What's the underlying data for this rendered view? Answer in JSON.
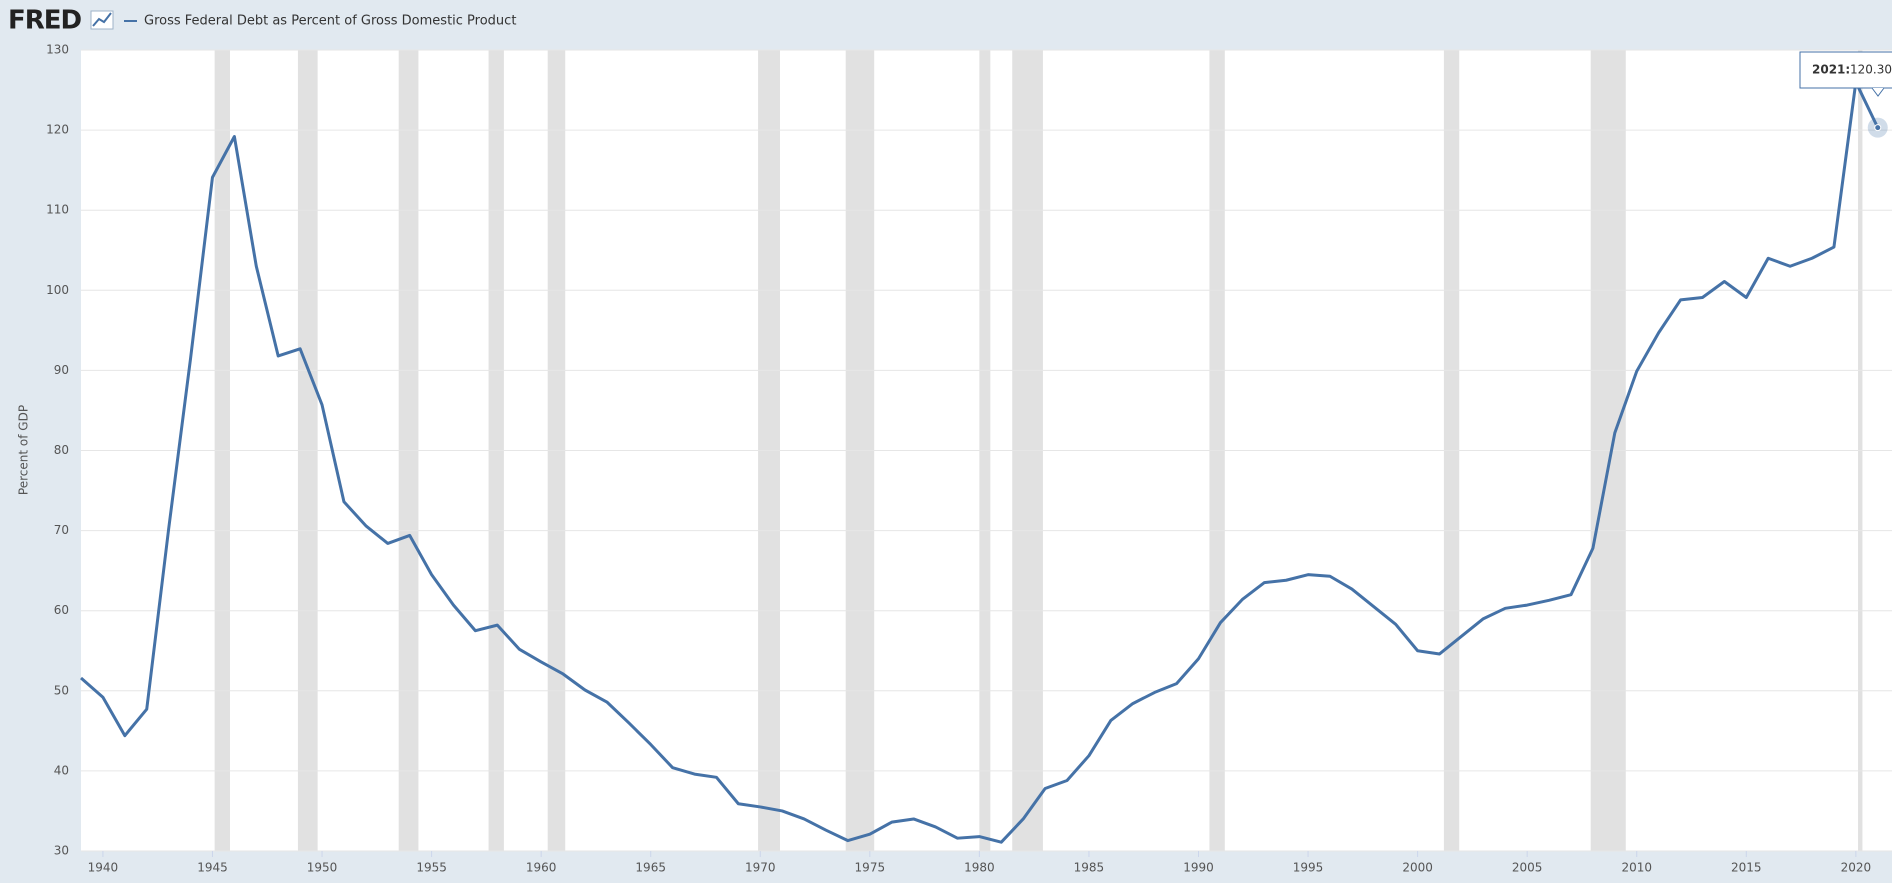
{
  "logo": "FRED",
  "chart_data": {
    "type": "line",
    "y_label": "Percent of GDP",
    "x": [
      1939,
      1940,
      1941,
      1942,
      1943,
      1944,
      1945,
      1946,
      1947,
      1948,
      1949,
      1950,
      1951,
      1952,
      1953,
      1954,
      1955,
      1956,
      1957,
      1958,
      1959,
      1960,
      1961,
      1962,
      1963,
      1964,
      1965,
      1966,
      1967,
      1968,
      1969,
      1970,
      1971,
      1972,
      1973,
      1974,
      1975,
      1976,
      1977,
      1978,
      1979,
      1980,
      1981,
      1982,
      1983,
      1984,
      1985,
      1986,
      1987,
      1988,
      1989,
      1990,
      1991,
      1992,
      1993,
      1994,
      1995,
      1996,
      1997,
      1998,
      1999,
      2000,
      2001,
      2002,
      2003,
      2004,
      2005,
      2006,
      2007,
      2008,
      2009,
      2010,
      2011,
      2012,
      2013,
      2014,
      2015,
      2016,
      2017,
      2018,
      2019,
      2020,
      2021
    ],
    "series": [
      {
        "name": "Gross Federal Debt as Percent of Gross Domestic Product",
        "color": "#4572a7",
        "values": [
          51.6,
          49.2,
          44.4,
          47.7,
          70.2,
          91.5,
          114.1,
          119.2,
          103.0,
          91.8,
          92.7,
          85.7,
          73.6,
          70.6,
          68.4,
          69.4,
          64.5,
          60.7,
          57.5,
          58.2,
          55.2,
          53.6,
          52.1,
          50.1,
          48.6,
          46.0,
          43.3,
          40.4,
          39.6,
          39.2,
          35.9,
          35.5,
          35.0,
          34.0,
          32.6,
          31.3,
          32.1,
          33.6,
          34.0,
          33.0,
          31.6,
          31.8,
          31.1,
          34.0,
          37.8,
          38.8,
          41.9,
          46.3,
          48.4,
          49.8,
          50.9,
          54.0,
          58.5,
          61.4,
          63.5,
          63.8,
          64.5,
          64.3,
          62.7,
          60.5,
          58.3,
          55.0,
          54.6,
          56.8,
          59.0,
          60.3,
          60.7,
          61.3,
          62.0,
          67.8,
          82.2,
          89.9,
          94.7,
          98.8,
          99.1,
          101.1,
          99.1,
          104.0,
          103.0,
          104.0,
          105.4,
          126.0,
          120.308
        ]
      }
    ],
    "recessions": [
      [
        1945.1,
        1945.8
      ],
      [
        1948.9,
        1949.8
      ],
      [
        1953.5,
        1954.4
      ],
      [
        1957.6,
        1958.3
      ],
      [
        1960.3,
        1961.1
      ],
      [
        1969.9,
        1970.9
      ],
      [
        1973.9,
        1975.2
      ],
      [
        1980.0,
        1980.5
      ],
      [
        1981.5,
        1982.9
      ],
      [
        1990.5,
        1991.2
      ],
      [
        2001.2,
        2001.9
      ],
      [
        2007.9,
        2009.5
      ],
      [
        2020.1,
        2020.3
      ]
    ],
    "recession_color": "#e1e1e1",
    "tooltip": {
      "title": "2021:",
      "index": 82
    },
    "xlim": [
      1939,
      2021.65
    ],
    "xticks": [
      1940,
      1945,
      1950,
      1955,
      1960,
      1965,
      1970,
      1975,
      1980,
      1985,
      1990,
      1995,
      2000,
      2005,
      2010,
      2015,
      2020
    ],
    "ylim": [
      30,
      130
    ],
    "yticks": [
      30,
      40,
      50,
      60,
      70,
      80,
      90,
      100,
      110,
      120,
      130
    ],
    "grid": true
  }
}
